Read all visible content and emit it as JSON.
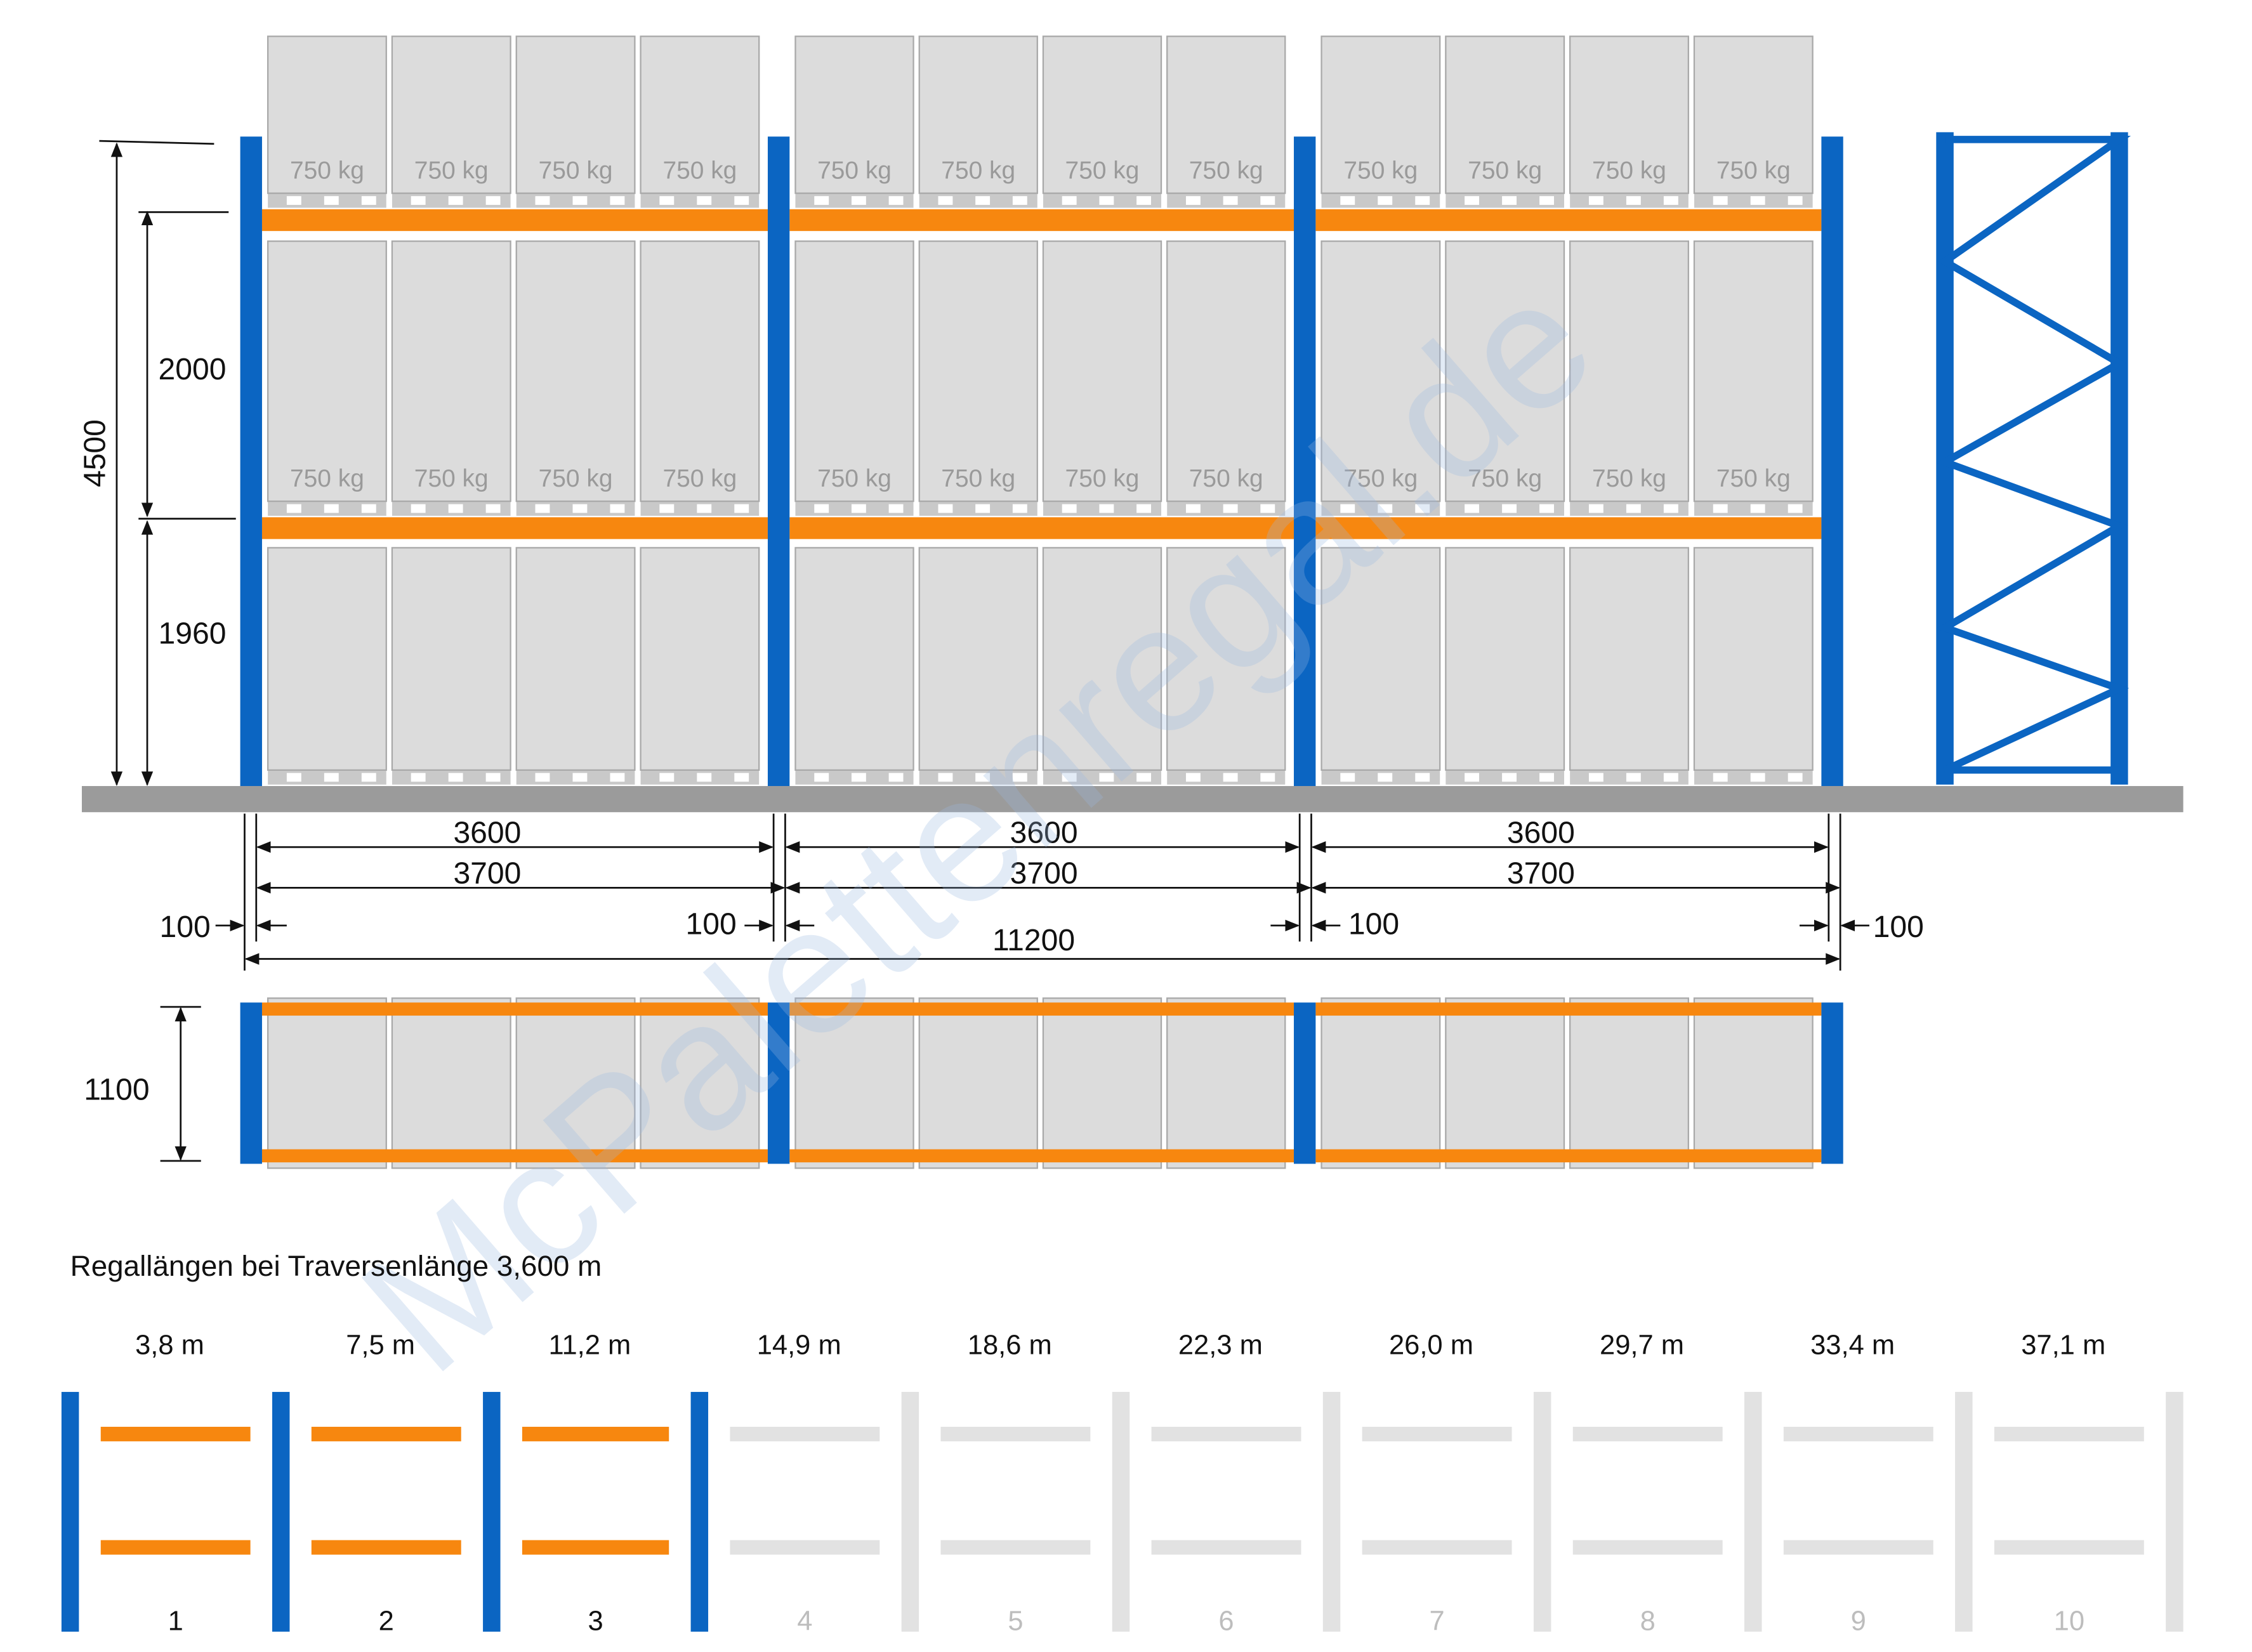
{
  "colors": {
    "upright": "#0b65c2",
    "beam": "#f7870f",
    "pallet": "#dcdcdc",
    "pallet_border": "#a9a9a9",
    "floor": "#9b9b9b",
    "inactive": "#e2e2e2"
  },
  "rack": {
    "bays": 3,
    "pallets_per_bay": 4,
    "load_label": "750 kg"
  },
  "dimensions": {
    "total_height": "4500",
    "level_height_top": "2000",
    "level_height_bottom": "1960",
    "beam_length": "3600",
    "bay_length": "3700",
    "overhang": "100",
    "total_length": "11200",
    "depth": "1100"
  },
  "watermark": "McPalettenregal.de",
  "lengths_section": {
    "caption": "Regallängen bei Traversenlänge 3,600 m",
    "items": [
      {
        "number": "1",
        "length": "3,8 m",
        "active": true
      },
      {
        "number": "2",
        "length": "7,5 m",
        "active": true
      },
      {
        "number": "3",
        "length": "11,2 m",
        "active": true
      },
      {
        "number": "4",
        "length": "14,9 m",
        "active": false
      },
      {
        "number": "5",
        "length": "18,6 m",
        "active": false
      },
      {
        "number": "6",
        "length": "22,3 m",
        "active": false
      },
      {
        "number": "7",
        "length": "26,0 m",
        "active": false
      },
      {
        "number": "8",
        "length": "29,7 m",
        "active": false
      },
      {
        "number": "9",
        "length": "33,4 m",
        "active": false
      },
      {
        "number": "10",
        "length": "37,1 m",
        "active": false
      }
    ]
  }
}
